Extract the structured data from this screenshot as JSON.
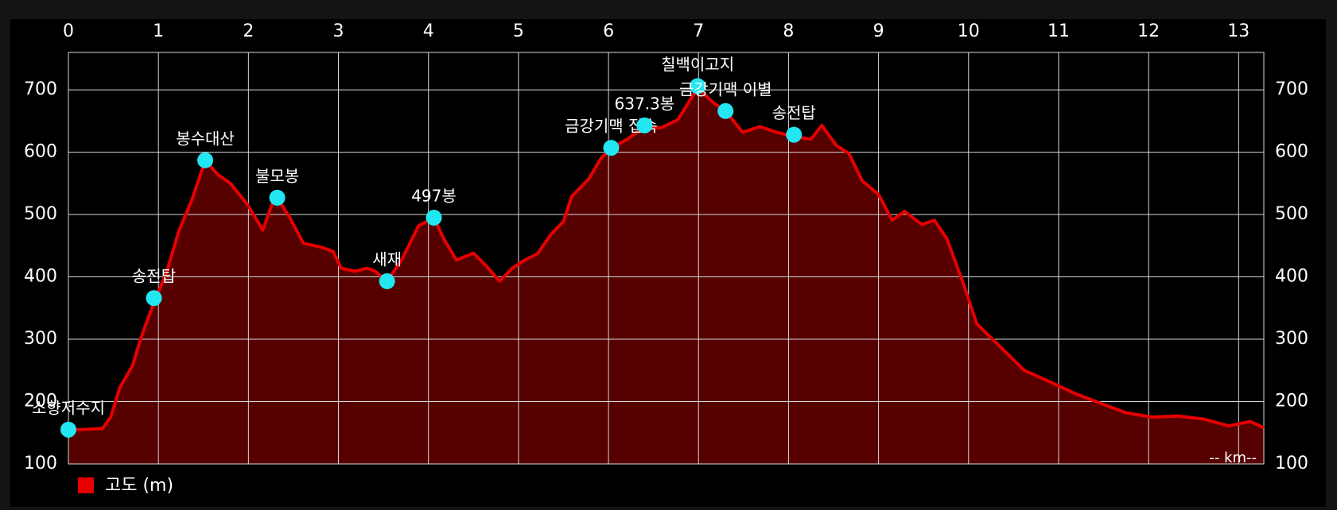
{
  "chart_data": {
    "type": "area",
    "x": [
      0,
      0.15,
      0.38,
      0.47,
      0.57,
      0.71,
      0.81,
      0.95,
      1.09,
      1.23,
      1.37,
      1.52,
      1.66,
      1.8,
      1.99,
      2.16,
      2.26,
      2.32,
      2.46,
      2.61,
      2.8,
      2.94,
      3.03,
      3.18,
      3.32,
      3.41,
      3.54,
      3.7,
      3.89,
      4.06,
      4.17,
      4.31,
      4.5,
      4.64,
      4.79,
      4.93,
      5.07,
      5.21,
      5.36,
      5.5,
      5.59,
      5.78,
      5.92,
      6.04,
      6.21,
      6.4,
      6.58,
      6.77,
      6.99,
      7.16,
      7.3,
      7.49,
      7.68,
      7.87,
      8.06,
      8.25,
      8.37,
      8.53,
      8.67,
      8.82,
      9.0,
      9.15,
      9.29,
      9.48,
      9.62,
      9.76,
      9.95,
      10.09,
      10.33,
      10.62,
      10.9,
      11.18,
      11.47,
      11.75,
      12.04,
      12.32,
      12.61,
      12.89,
      13.13,
      13.28
    ],
    "series": [
      {
        "name": "고도 (m)",
        "color": "#e60000",
        "fill": "#560000",
        "values": [
          155,
          155,
          157,
          175,
          222,
          257,
          304,
          359,
          407,
          475,
          523,
          587,
          564,
          550,
          516,
          475,
          516,
          527,
          495,
          454,
          448,
          441,
          414,
          409,
          414,
          409,
          393,
          427,
          482,
          495,
          461,
          427,
          438,
          418,
          393,
          414,
          427,
          437,
          468,
          489,
          529,
          557,
          591,
          607,
          621,
          641,
          639,
          652,
          703,
          680,
          666,
          632,
          641,
          632,
          625,
          621,
          643,
          611,
          598,
          554,
          532,
          491,
          505,
          484,
          491,
          461,
          386,
          325,
          291,
          250,
          232,
          213,
          197,
          182,
          175,
          177,
          172,
          161,
          168,
          158
        ]
      }
    ],
    "annotations": [
      {
        "label": "소향저수지",
        "x": 0,
        "y": 155
      },
      {
        "label": "송전탑",
        "x": 0.95,
        "y": 366
      },
      {
        "label": "봉수대산",
        "x": 1.52,
        "y": 587
      },
      {
        "label": "불모봉",
        "x": 2.32,
        "y": 527
      },
      {
        "label": "새재",
        "x": 3.54,
        "y": 393
      },
      {
        "label": "497봉",
        "x": 4.06,
        "y": 495
      },
      {
        "label": "금강기맥 접속",
        "x": 6.03,
        "y": 607
      },
      {
        "label": "637.3봉",
        "x": 6.4,
        "y": 643
      },
      {
        "label": "칠백이고지",
        "x": 6.99,
        "y": 706
      },
      {
        "label": "금강기맥 이별",
        "x": 7.3,
        "y": 666
      },
      {
        "label": "송전탑",
        "x": 8.06,
        "y": 628
      }
    ],
    "marker_color": "#22e6f2",
    "xlabel": "-- km--",
    "xlim": [
      0,
      13.28
    ],
    "xticks": [
      0,
      1,
      2,
      3,
      4,
      5,
      6,
      7,
      8,
      9,
      10,
      11,
      12,
      13
    ],
    "ylim": [
      100,
      760
    ],
    "yticks": [
      100,
      200,
      300,
      400,
      500,
      600,
      700
    ],
    "y2lim": [
      100,
      760
    ],
    "y2ticks": [
      100,
      200,
      300,
      400,
      500,
      600,
      700
    ],
    "grid": true
  }
}
